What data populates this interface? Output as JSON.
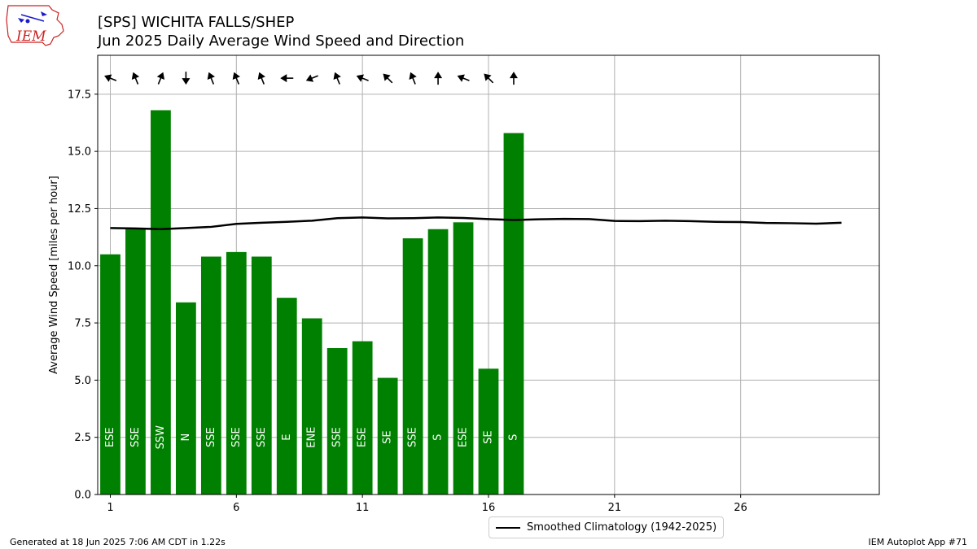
{
  "header": {
    "title_line1": "[SPS] WICHITA FALLS/SHEP",
    "title_line2": "Jun 2025 Daily Average Wind Speed and Direction",
    "logo_text": "IEM"
  },
  "footer": {
    "left": "Generated at 18 Jun 2025 7:06 AM CDT in 1.22s",
    "right": "IEM Autoplot App #71"
  },
  "colors": {
    "bar": "#008000",
    "climatology": "#000000",
    "grid": "#b0b0b0",
    "label_text": "#ffffff"
  },
  "chart_data": {
    "type": "bar",
    "title": "[SPS] WICHITA FALLS/SHEP",
    "subtitle": "Jun 2025 Daily Average Wind Speed and Direction",
    "ylabel": "Average Wind Speed [miles per hour]",
    "xlabel": "",
    "xlim": [
      0.5,
      31.5
    ],
    "ylim": [
      0,
      19.2
    ],
    "xticks": [
      1,
      6,
      11,
      16,
      21,
      26
    ],
    "yticks": [
      0.0,
      2.5,
      5.0,
      7.5,
      10.0,
      12.5,
      15.0,
      17.5
    ],
    "ytick_labels": [
      "0.0",
      "2.5",
      "5.0",
      "7.5",
      "10.0",
      "12.5",
      "15.0",
      "17.5"
    ],
    "grid": true,
    "legend_position": "bottom-center",
    "days": [
      1,
      2,
      3,
      4,
      5,
      6,
      7,
      8,
      9,
      10,
      11,
      12,
      13,
      14,
      15,
      16,
      17
    ],
    "values": [
      10.5,
      11.6,
      16.8,
      8.4,
      10.4,
      10.6,
      10.4,
      8.6,
      7.7,
      6.4,
      6.7,
      5.1,
      11.2,
      11.6,
      11.9,
      5.5,
      15.8
    ],
    "direction_labels": [
      "ESE",
      "SSE",
      "SSW",
      "N",
      "SSE",
      "SSE",
      "SSE",
      "E",
      "ENE",
      "SSE",
      "ESE",
      "SE",
      "SSE",
      "S",
      "ESE",
      "SE",
      "S"
    ],
    "direction_degrees": [
      112,
      158,
      202,
      0,
      158,
      158,
      158,
      90,
      68,
      158,
      112,
      135,
      158,
      180,
      112,
      135,
      180
    ],
    "climatology": {
      "name": "Smoothed Climatology (1942-2025)",
      "x": [
        1,
        2,
        3,
        4,
        5,
        6,
        7,
        8,
        9,
        10,
        11,
        12,
        13,
        14,
        15,
        16,
        17,
        18,
        19,
        20,
        21,
        22,
        23,
        24,
        25,
        26,
        27,
        28,
        29,
        30
      ],
      "y": [
        11.65,
        11.63,
        11.6,
        11.65,
        11.7,
        11.83,
        11.88,
        11.92,
        11.97,
        12.08,
        12.11,
        12.07,
        12.08,
        12.11,
        12.09,
        12.04,
        12.0,
        12.03,
        12.05,
        12.04,
        11.96,
        11.95,
        11.97,
        11.95,
        11.92,
        11.91,
        11.87,
        11.86,
        11.84,
        11.88
      ]
    }
  }
}
